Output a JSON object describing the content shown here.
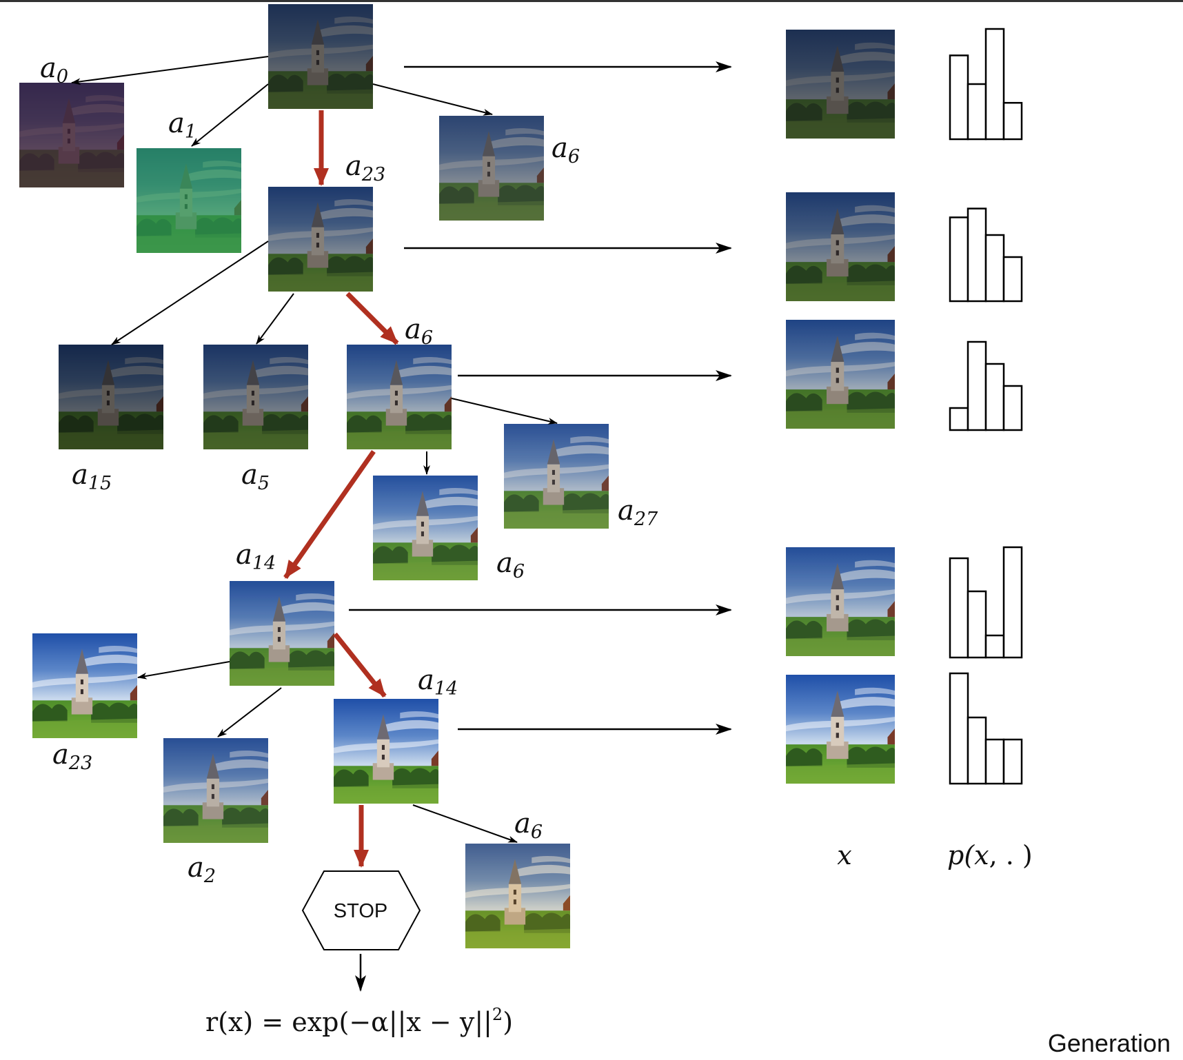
{
  "nodes": [
    {
      "id": "root",
      "tint": "#ffffff",
      "tint_opacity": 0.0,
      "darken": 0.5,
      "sat": 0.55
    },
    {
      "id": "a0",
      "tint": "#8a2b70",
      "tint_opacity": 0.45,
      "darken": 0.45,
      "sat": 0.4
    },
    {
      "id": "a1",
      "tint": "#1dbf5a",
      "tint_opacity": 0.55,
      "darken": 0.15,
      "sat": 0.4
    },
    {
      "id": "a6_top",
      "tint": "#ffffff",
      "tint_opacity": 0.0,
      "darken": 0.3,
      "sat": 0.45
    },
    {
      "id": "l1",
      "tint": "#ffffff",
      "tint_opacity": 0.0,
      "darken": 0.35,
      "sat": 0.75
    },
    {
      "id": "a15",
      "tint": "#ffffff",
      "tint_opacity": 0.0,
      "darken": 0.55,
      "sat": 0.75
    },
    {
      "id": "a5",
      "tint": "#ffffff",
      "tint_opacity": 0.0,
      "darken": 0.4,
      "sat": 0.75
    },
    {
      "id": "l2",
      "tint": "#ffffff",
      "tint_opacity": 0.0,
      "darken": 0.2,
      "sat": 0.85
    },
    {
      "id": "a27",
      "tint": "#ffffff",
      "tint_opacity": 0.0,
      "darken": 0.1,
      "sat": 0.7
    },
    {
      "id": "a6_mid",
      "tint": "#ffffff",
      "tint_opacity": 0.0,
      "darken": 0.05,
      "sat": 0.85
    },
    {
      "id": "l3",
      "tint": "#ffffff",
      "tint_opacity": 0.0,
      "darken": 0.08,
      "sat": 0.85
    },
    {
      "id": "a23_bot",
      "tint": "#ffffff",
      "tint_opacity": 0.0,
      "darken": 0.0,
      "sat": 1.1
    },
    {
      "id": "a2",
      "tint": "#ffffff",
      "tint_opacity": 0.0,
      "darken": 0.1,
      "sat": 0.75
    },
    {
      "id": "l4",
      "tint": "#ffffff",
      "tint_opacity": 0.0,
      "darken": 0.0,
      "sat": 1.0
    },
    {
      "id": "a6_bot",
      "tint": "#e0a020",
      "tint_opacity": 0.18,
      "darken": 0.0,
      "sat": 1.05
    },
    {
      "id": "x1",
      "tint": "#ffffff",
      "tint_opacity": 0.0,
      "darken": 0.5,
      "sat": 0.55
    },
    {
      "id": "x2",
      "tint": "#ffffff",
      "tint_opacity": 0.0,
      "darken": 0.35,
      "sat": 0.75
    },
    {
      "id": "x3",
      "tint": "#ffffff",
      "tint_opacity": 0.0,
      "darken": 0.2,
      "sat": 0.85
    },
    {
      "id": "x4",
      "tint": "#ffffff",
      "tint_opacity": 0.0,
      "darken": 0.08,
      "sat": 0.85
    },
    {
      "id": "x5",
      "tint": "#ffffff",
      "tint_opacity": 0.0,
      "darken": 0.0,
      "sat": 1.0
    }
  ],
  "labels": {
    "a0": {
      "base": "a",
      "sub": "0"
    },
    "a1": {
      "base": "a",
      "sub": "1"
    },
    "a23_top": {
      "base": "a",
      "sub": "23"
    },
    "a6_top": {
      "base": "a",
      "sub": "6"
    },
    "a6_l2": {
      "base": "a",
      "sub": "6"
    },
    "a15": {
      "base": "a",
      "sub": "15"
    },
    "a5": {
      "base": "a",
      "sub": "5"
    },
    "a27": {
      "base": "a",
      "sub": "27"
    },
    "a6_mid": {
      "base": "a",
      "sub": "6"
    },
    "a14_l3": {
      "base": "a",
      "sub": "14"
    },
    "a23_bot": {
      "base": "a",
      "sub": "23"
    },
    "a14_l4": {
      "base": "a",
      "sub": "14"
    },
    "a2": {
      "base": "a",
      "sub": "2"
    },
    "a6_bot": {
      "base": "a",
      "sub": "6"
    }
  },
  "histograms": [
    {
      "id": "h1",
      "values": [
        0.76,
        0.5,
        1.0,
        0.33
      ]
    },
    {
      "id": "h2",
      "values": [
        0.76,
        0.84,
        0.6,
        0.4
      ]
    },
    {
      "id": "h3",
      "values": [
        0.2,
        0.8,
        0.6,
        0.4
      ]
    },
    {
      "id": "h4",
      "values": [
        0.9,
        0.6,
        0.2,
        1.0
      ]
    },
    {
      "id": "h5",
      "values": [
        1.0,
        0.6,
        0.4,
        0.4
      ]
    }
  ],
  "colors": {
    "selected_edge": "#b03020",
    "edge": "#000000"
  },
  "stop": {
    "label": "STOP"
  },
  "column_labels": {
    "x": "x",
    "p_prefix": "p(",
    "p_x": "x",
    "p_suffix": ", . )"
  },
  "reward": {
    "lhs": "r(x) = exp(−α||x − y||",
    "exp": "2",
    "rhs": ")"
  },
  "section": {
    "title": "Generation"
  }
}
